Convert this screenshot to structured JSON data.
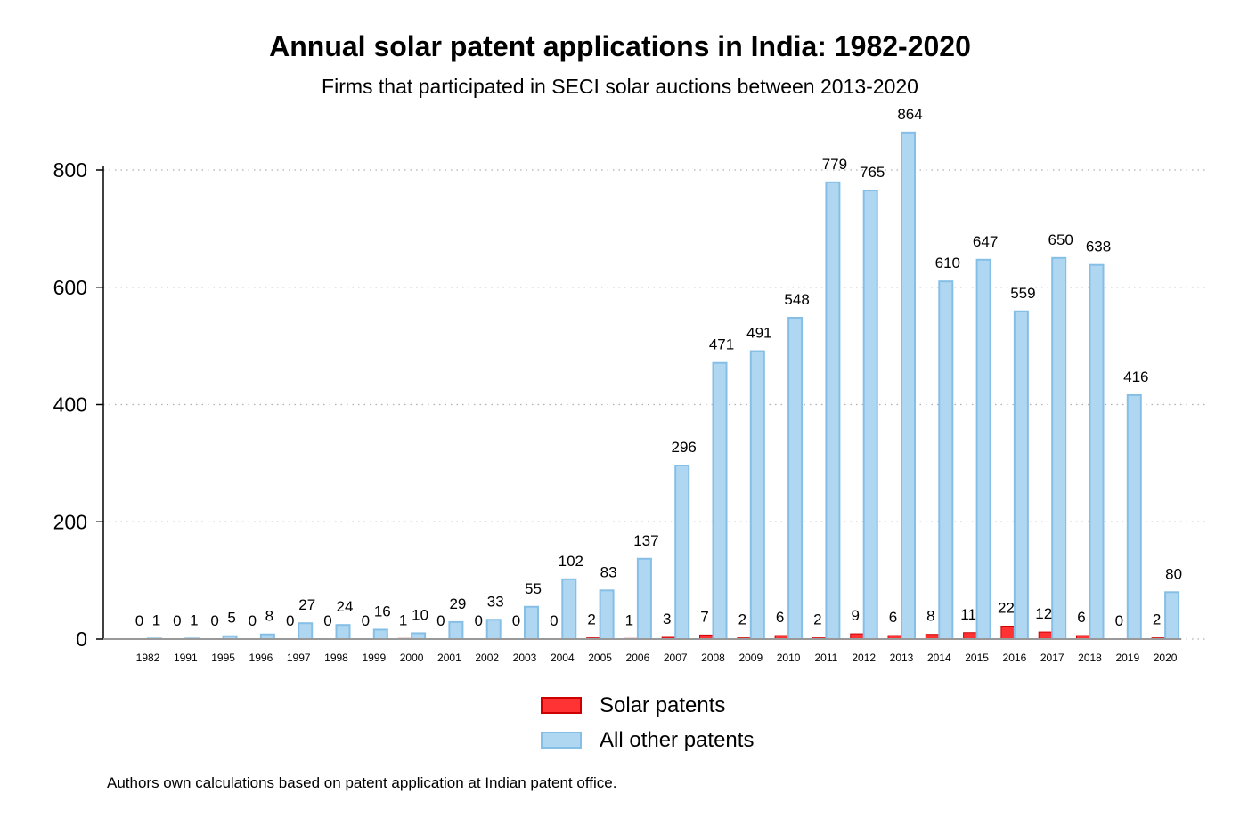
{
  "title": "Annual solar patent applications in India: 1982-2020",
  "subtitle": "Firms that participated in SECI solar auctions between 2013-2020",
  "note": "Authors own calculations based on patent application at Indian patent office.",
  "colors": {
    "solar_fill": "#ff3333",
    "solar_stroke": "#cc0000",
    "other_fill": "#b0d7f2",
    "other_stroke": "#86bfe6",
    "grid": "#b0b0b0",
    "axis": "#000000"
  },
  "chart_data": {
    "type": "bar",
    "title": "Annual solar patent applications in India: 1982-2020",
    "subtitle": "Firms that participated in SECI solar auctions between 2013-2020",
    "categories": [
      "1982",
      "1991",
      "1995",
      "1996",
      "1997",
      "1998",
      "1999",
      "2000",
      "2001",
      "2002",
      "2003",
      "2004",
      "2005",
      "2006",
      "2007",
      "2008",
      "2009",
      "2010",
      "2011",
      "2012",
      "2013",
      "2014",
      "2015",
      "2016",
      "2017",
      "2018",
      "2019",
      "2020"
    ],
    "series": [
      {
        "name": "Solar patents",
        "values": [
          0,
          0,
          0,
          0,
          0,
          0,
          0,
          1,
          0,
          0,
          0,
          0,
          2,
          1,
          3,
          7,
          2,
          6,
          2,
          9,
          6,
          8,
          11,
          22,
          12,
          6,
          0,
          2
        ]
      },
      {
        "name": "All other patents",
        "values": [
          1,
          1,
          5,
          8,
          27,
          24,
          16,
          10,
          29,
          33,
          55,
          102,
          83,
          137,
          296,
          471,
          491,
          548,
          779,
          765,
          864,
          610,
          647,
          559,
          650,
          638,
          416,
          80
        ]
      }
    ],
    "yticks": [
      0,
      200,
      400,
      600,
      800
    ],
    "ylim": [
      0,
      880
    ],
    "grid": true,
    "legend_position": "bottom-center"
  }
}
